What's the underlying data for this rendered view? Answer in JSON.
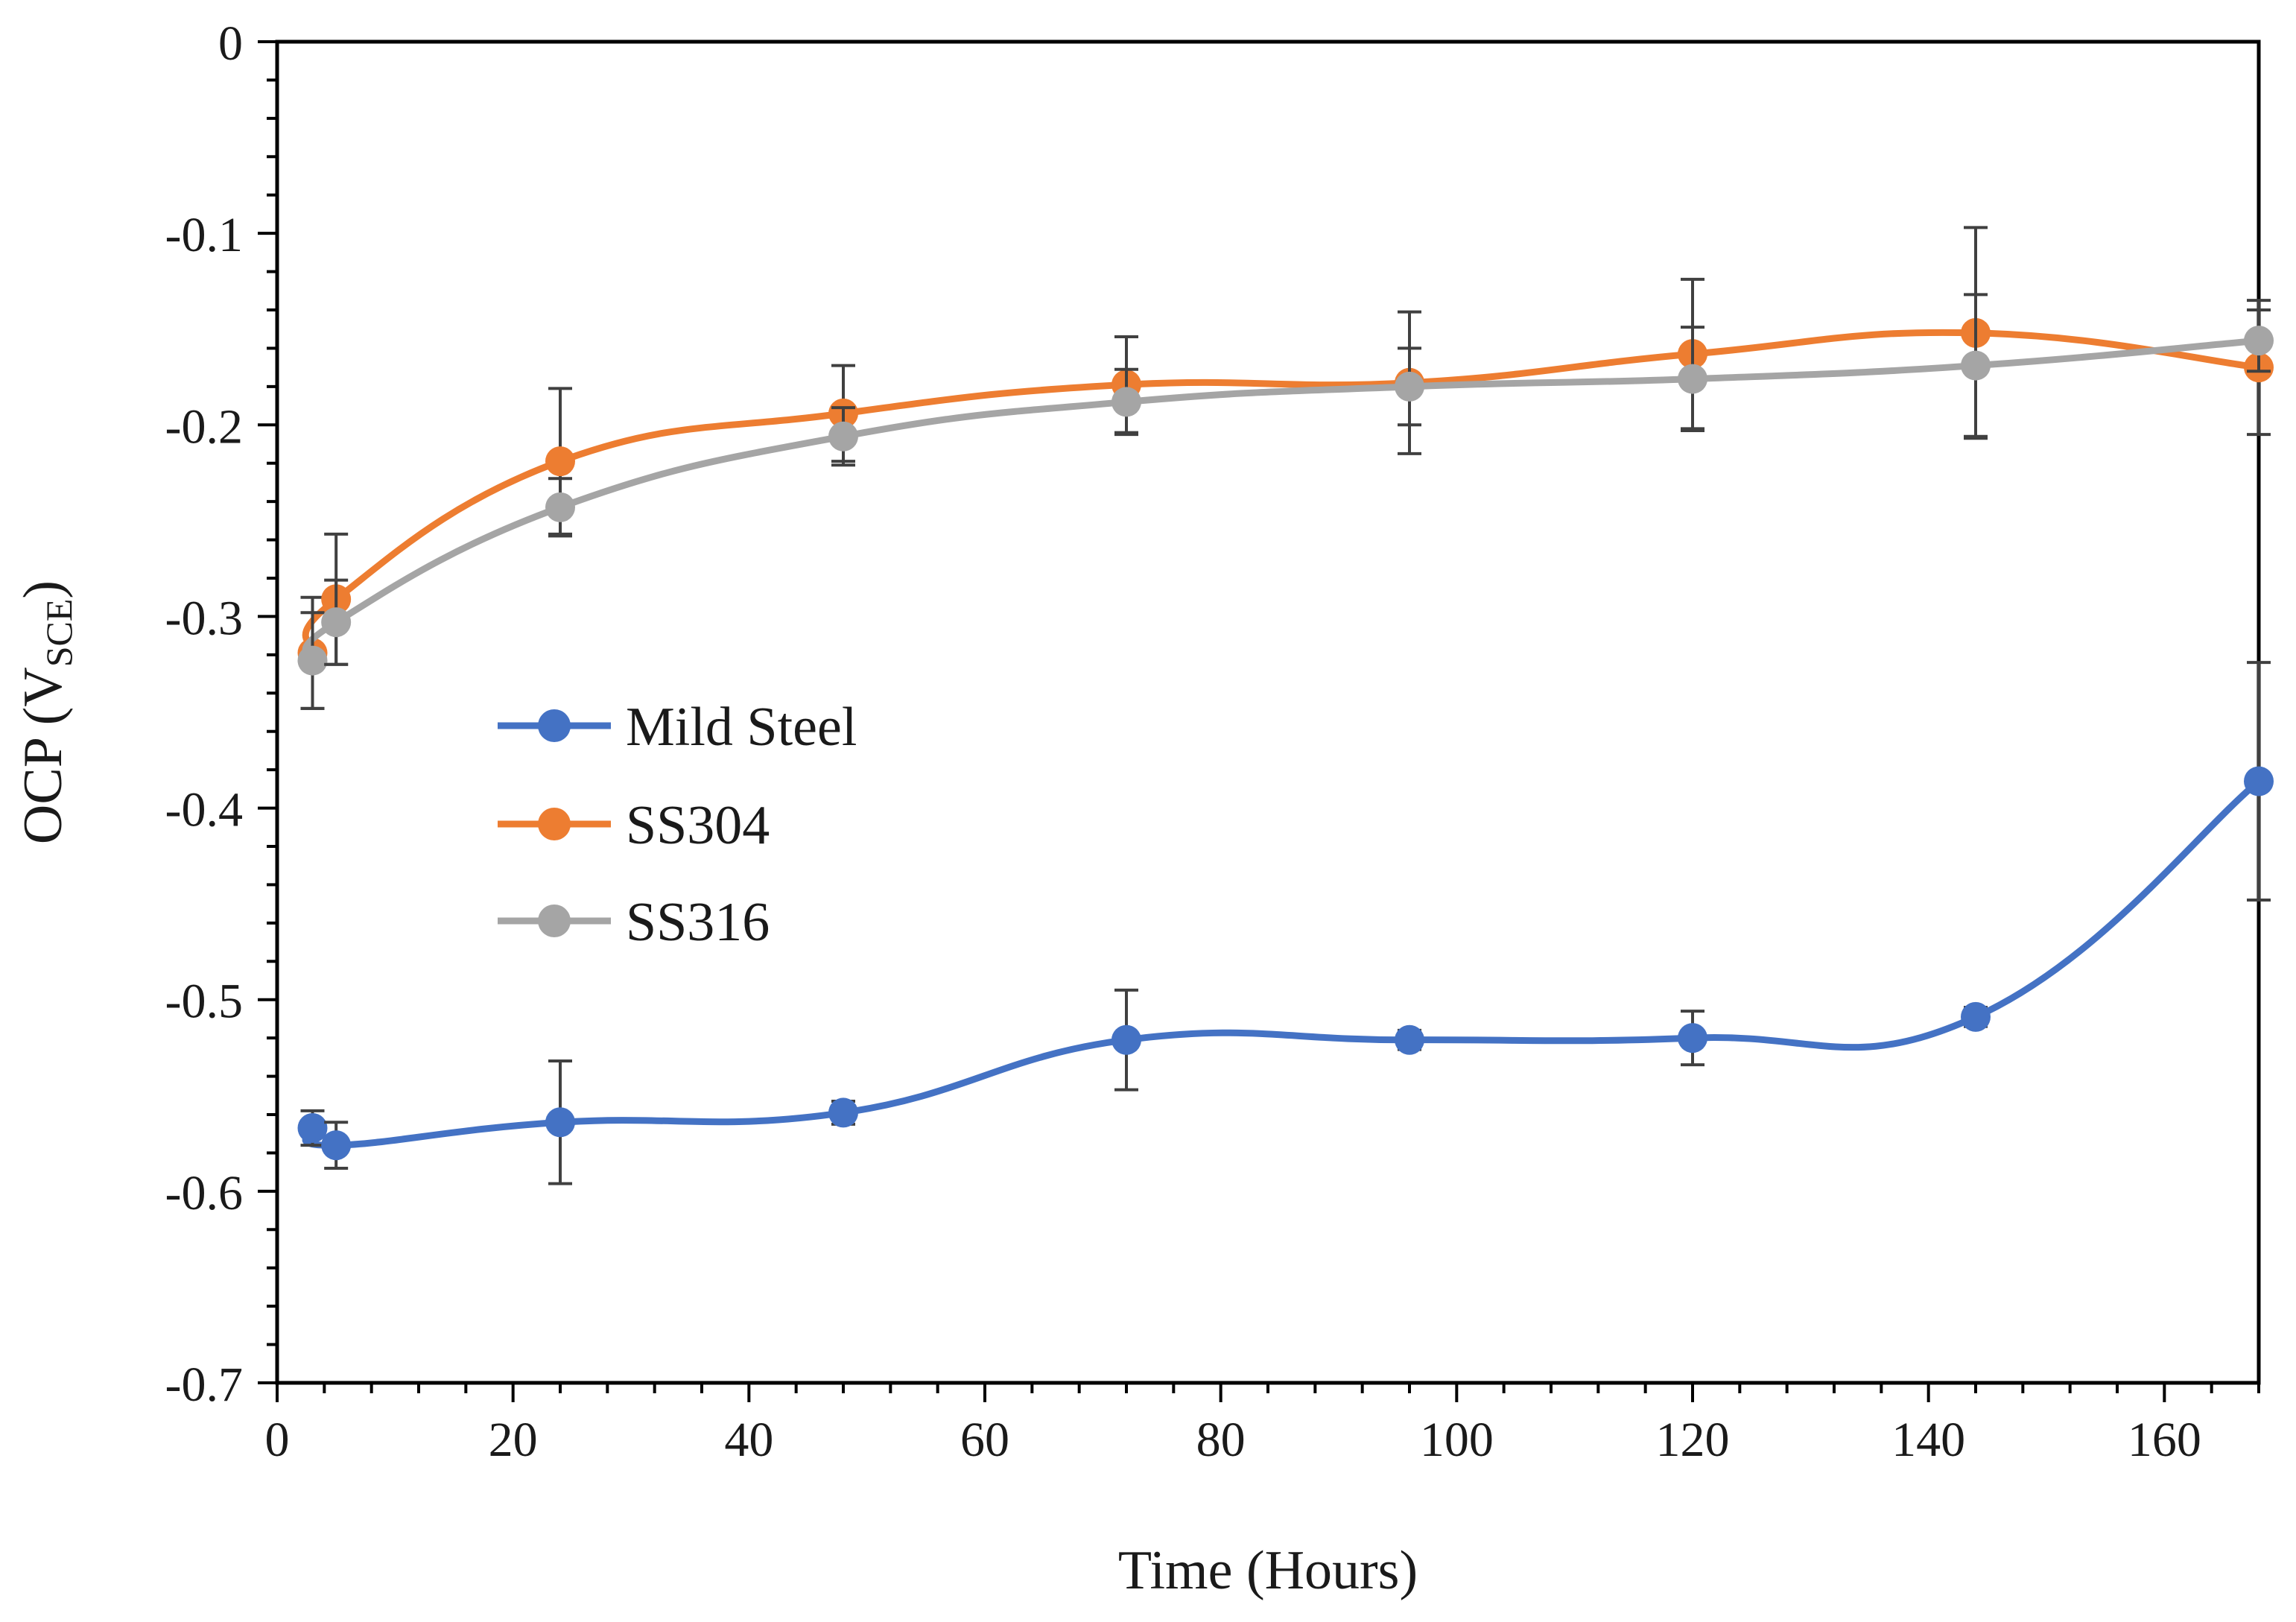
{
  "chart_data": {
    "type": "line",
    "title": "",
    "xlabel": "Time (Hours)",
    "ylabel": {
      "prefix": "OCP (V",
      "subscript": "SCE",
      "suffix": ")"
    },
    "xlim": [
      0,
      168
    ],
    "ylim": [
      -0.7,
      0
    ],
    "x_ticks": [
      0,
      20,
      40,
      60,
      80,
      100,
      120,
      140,
      160
    ],
    "x_tick_labels": [
      "0",
      "20",
      "40",
      "60",
      "80",
      "100",
      "120",
      "140",
      "160"
    ],
    "y_ticks": [
      0,
      -0.1,
      -0.2,
      -0.3,
      -0.4,
      -0.5,
      -0.6,
      -0.7
    ],
    "y_tick_labels": [
      "0",
      "-0.1",
      "-0.2",
      "-0.3",
      "-0.4",
      "-0.5",
      "-0.6",
      "-0.7"
    ],
    "grid": false,
    "legend_position": "middle-left",
    "series": [
      {
        "name": "Mild Steel",
        "color": "#4472C4",
        "x": [
          3,
          5,
          24,
          48,
          72,
          96,
          120,
          144,
          168
        ],
        "y": [
          -0.567,
          -0.576,
          -0.564,
          -0.559,
          -0.521,
          -0.521,
          -0.52,
          -0.509,
          -0.386
        ],
        "error": [
          0.009,
          0.012,
          0.032,
          0.006,
          0.026,
          0.005,
          0.014,
          0.005,
          0.062
        ]
      },
      {
        "name": "SS304",
        "color": "#ED7D31",
        "x": [
          3,
          5,
          24,
          48,
          72,
          96,
          120,
          144,
          168
        ],
        "y": [
          -0.319,
          -0.291,
          -0.219,
          -0.194,
          -0.179,
          -0.178,
          -0.163,
          -0.152,
          -0.17
        ],
        "error": [
          0.029,
          0.034,
          0.038,
          0.025,
          0.025,
          0.037,
          0.039,
          0.055,
          0.035
        ]
      },
      {
        "name": "SS316",
        "color": "#A5A5A5",
        "x": [
          3,
          5,
          24,
          48,
          72,
          96,
          120,
          144,
          168
        ],
        "y": [
          -0.323,
          -0.303,
          -0.243,
          -0.206,
          -0.188,
          -0.18,
          -0.176,
          -0.169,
          -0.156
        ],
        "error": [
          0.025,
          0.022,
          0.015,
          0.015,
          0.017,
          0.02,
          0.027,
          0.037,
          0.016
        ]
      }
    ]
  }
}
